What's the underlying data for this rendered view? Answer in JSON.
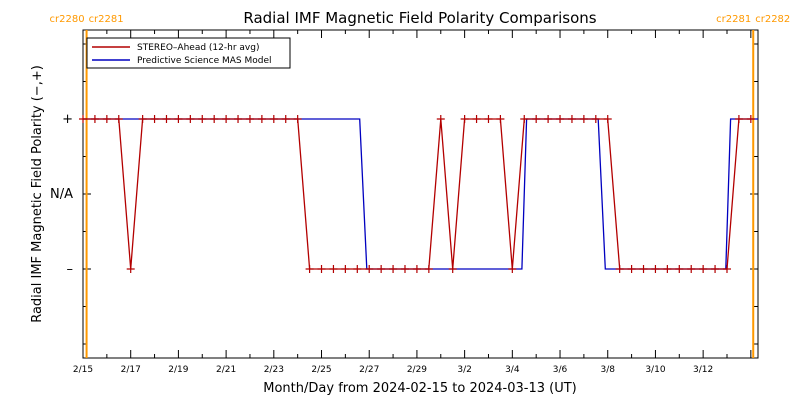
{
  "chart_data": {
    "type": "line",
    "title": "Radial IMF Magnetic Field Polarity Comparisons",
    "xlabel": "Month/Day from 2024-02-15 to 2024-03-13 (UT)",
    "ylabel": "Radial IMF Magnetic Field Polarity (−,+)",
    "x_range_days": [
      0,
      28.3
    ],
    "x_origin_date": "2024-02-15",
    "y_levels": {
      "minus": -1,
      "na": 0,
      "plus": 1
    },
    "ylim": [
      -2,
      2
    ],
    "x_ticks": [
      {
        "day": 0,
        "label": "2/15"
      },
      {
        "day": 2,
        "label": "2/17"
      },
      {
        "day": 4,
        "label": "2/19"
      },
      {
        "day": 6,
        "label": "2/21"
      },
      {
        "day": 8,
        "label": "2/23"
      },
      {
        "day": 10,
        "label": "2/25"
      },
      {
        "day": 12,
        "label": "2/27"
      },
      {
        "day": 14,
        "label": "2/29"
      },
      {
        "day": 16,
        "label": "3/2"
      },
      {
        "day": 18,
        "label": "3/4"
      },
      {
        "day": 20,
        "label": "3/6"
      },
      {
        "day": 22,
        "label": "3/8"
      },
      {
        "day": 24,
        "label": "3/10"
      },
      {
        "day": 26,
        "label": "3/12"
      }
    ],
    "y_ticks": [
      {
        "value": 1,
        "label": "+"
      },
      {
        "value": 0,
        "label": "N/A"
      },
      {
        "value": -1,
        "label": "–"
      }
    ],
    "carrington_markers": [
      {
        "day": 0.15,
        "left_label": "cr2280",
        "right_label": "cr2281"
      },
      {
        "day": 28.1,
        "left_label": "cr2281",
        "right_label": "cr2282"
      }
    ],
    "legend": {
      "placement": "top-left"
    },
    "series": [
      {
        "name": "STEREO–Ahead (12-hr avg)",
        "color": "#b30000",
        "markers": true,
        "x": [
          0,
          0.5,
          1,
          1.5,
          2,
          2.5,
          3,
          3.5,
          4,
          4.5,
          5,
          5.5,
          6,
          6.5,
          7,
          7.5,
          8,
          8.5,
          9,
          9.5,
          10,
          10.5,
          11,
          11.5,
          12,
          12.5,
          13,
          13.5,
          14,
          14.5,
          15,
          15.5,
          16,
          16.5,
          17,
          17.5,
          18,
          18.5,
          19,
          19.5,
          20,
          20.5,
          21,
          21.5,
          22,
          22.5,
          23,
          23.5,
          24,
          24.5,
          25,
          25.5,
          26,
          26.5,
          27,
          27.5,
          28
        ],
        "y": [
          1,
          1,
          1,
          1,
          -1,
          1,
          1,
          1,
          1,
          1,
          1,
          1,
          1,
          1,
          1,
          1,
          1,
          1,
          1,
          -1,
          -1,
          -1,
          -1,
          -1,
          -1,
          -1,
          -1,
          -1,
          -1,
          -1,
          1,
          -1,
          1,
          1,
          1,
          1,
          -1,
          1,
          1,
          1,
          1,
          1,
          1,
          1,
          1,
          -1,
          -1,
          -1,
          -1,
          -1,
          -1,
          -1,
          -1,
          -1,
          -1,
          1,
          1
        ]
      },
      {
        "name": "Predictive Science MAS Model",
        "color": "#0000c0",
        "markers": false,
        "x": [
          0,
          11.6,
          11.9,
          18.4,
          18.6,
          21.6,
          21.9,
          26.95,
          27.15,
          28.3
        ],
        "y": [
          1,
          1,
          -1,
          -1,
          1,
          1,
          -1,
          -1,
          1,
          1
        ]
      }
    ]
  }
}
